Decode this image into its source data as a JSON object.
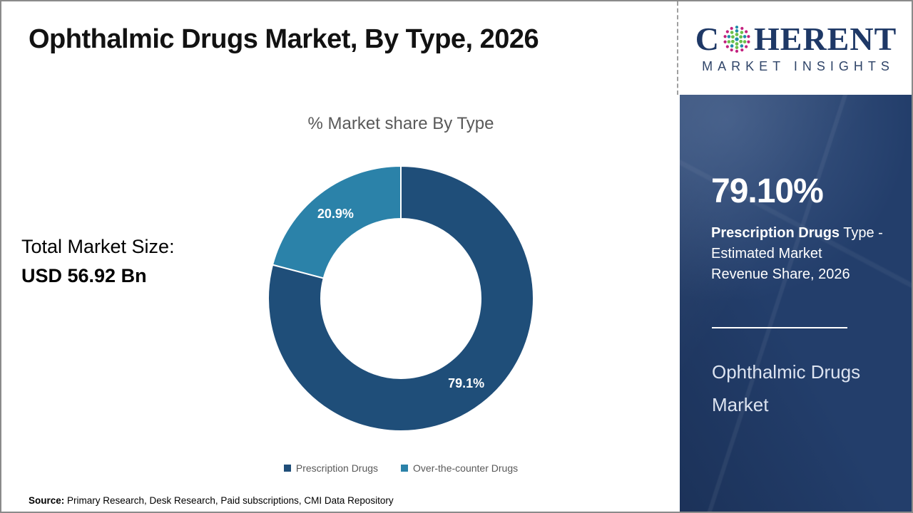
{
  "page_title": "Ophthalmic Drugs Market, By Type, 2026",
  "logo": {
    "brand_prefix": "C",
    "brand_suffix": "HERENT",
    "brand_subtitle": "MARKET INSIGHTS",
    "brand_color": "#1E3866",
    "dot_sphere_icon": "multicolor-dot-globe",
    "dot_colors": {
      "teal": "#1F8CA8",
      "green": "#6ABF4B",
      "magenta": "#C2217E"
    }
  },
  "stats_left": {
    "label": "Total Market Size:",
    "value": "USD 56.92 Bn"
  },
  "chart_data": {
    "type": "pie",
    "subtype": "donut",
    "title": "% Market share By Type",
    "categories": [
      "Prescription Drugs",
      "Over-the-counter Drugs"
    ],
    "values": [
      79.1,
      20.9
    ],
    "slice_labels": [
      "79.1%",
      "20.9%"
    ],
    "colors": [
      "#1F4E79",
      "#2B82A9"
    ],
    "legend_position": "bottom",
    "start_angle_deg": 0,
    "direction": "clockwise",
    "label_color": "#ffffff"
  },
  "sidebar": {
    "stat_value": "79.10%",
    "desc_line1_bold": "Prescription Drugs",
    "desc_line1_rest": " Type -",
    "desc_line2": "Estimated Market",
    "desc_line3": "Revenue Share, 2026",
    "market_name": "Ophthalmic Drugs Market",
    "background_color": "#233E6B"
  },
  "footer": {
    "source_label": "Source:",
    "source_text": " Primary Research, Desk Research, Paid subscriptions, CMI Data Repository"
  }
}
